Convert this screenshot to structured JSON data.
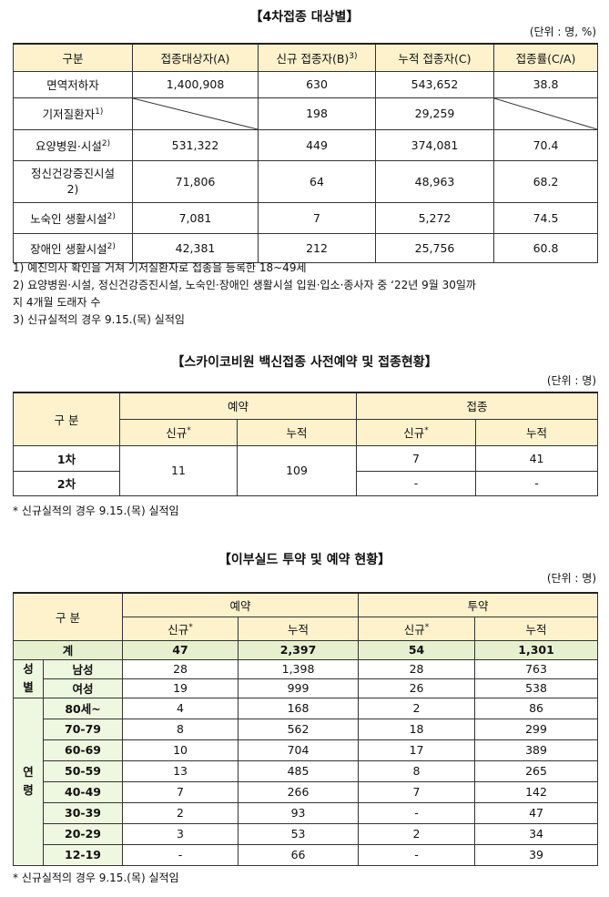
{
  "t1": {
    "title": "【4차접종 대상별】",
    "unit": "(단위 : 명, %)",
    "headers": [
      "구분",
      "접종대상자(A)",
      "신규 접종자(B)",
      "3)",
      "누적 접종자(C)",
      "접종률(C/A)"
    ],
    "rows": [
      {
        "label": "면역저하자",
        "sup": "",
        "a": "1,400,908",
        "b": "630",
        "c": "543,652",
        "r": "38.8"
      },
      {
        "label": "기저질환자",
        "sup": "1)",
        "a": "",
        "b": "198",
        "c": "29,259",
        "r": ""
      },
      {
        "label": "요양병원·시설",
        "sup": "2)",
        "a": "531,322",
        "b": "449",
        "c": "374,081",
        "r": "70.4"
      },
      {
        "label": "정신건강증진시설",
        "label2": "2)",
        "sup": "",
        "a": "71,806",
        "b": "64",
        "c": "48,963",
        "r": "68.2"
      },
      {
        "label": "노숙인 생활시설",
        "sup": "2)",
        "a": "7,081",
        "b": "7",
        "c": "5,272",
        "r": "74.5"
      },
      {
        "label": "장애인 생활시설",
        "sup": "2)",
        "a": "42,381",
        "b": "212",
        "c": "25,756",
        "r": "60.8"
      }
    ],
    "notes": [
      "1) 예진의사 확인을 거쳐 기저질환자로 접종을 등록한 18~49세",
      "2) 요양병원·시설, 정신건강증진시설, 노숙인·장애인 생활시설 입원·입소·종사자 중 ‘22년 9월 30일까",
      "지 4개월 도래자 수",
      "3) 신규실적의 경우 9.15.(목) 실적임"
    ]
  },
  "t2": {
    "title": "【스카이코비원 백신접종 사전예약 및 접종현황】",
    "unit": "(단위 : 명)",
    "h_group": "구 분",
    "h_reserve": "예약",
    "h_vacc": "접종",
    "h_new": "신규",
    "h_new_sup": "*",
    "h_cum": "누적",
    "rows": [
      {
        "label": "1차",
        "v_new": "7",
        "v_cum": "41"
      },
      {
        "label": "2차",
        "v_new": "-",
        "v_cum": "-"
      }
    ],
    "res_new": "11",
    "res_cum": "109",
    "note": "* 신규실적의 경우 9.15.(목) 실적임"
  },
  "t3": {
    "title": "【이부실드 투약 및 예약 현황】",
    "unit": "(단위 : 명)",
    "h_group": "구 분",
    "h_reserve": "예약",
    "h_admin": "투약",
    "h_new": "신규",
    "h_new_sup": "*",
    "h_cum": "누적",
    "total": {
      "label": "계",
      "rn": "47",
      "rc": "2,397",
      "an": "54",
      "ac": "1,301"
    },
    "sex_label": [
      "성",
      "별"
    ],
    "sex": [
      {
        "label": "남성",
        "rn": "28",
        "rc": "1,398",
        "an": "28",
        "ac": "763"
      },
      {
        "label": "여성",
        "rn": "19",
        "rc": "999",
        "an": "26",
        "ac": "538"
      }
    ],
    "age_label": [
      "연",
      "령"
    ],
    "age": [
      {
        "label": "80세~",
        "rn": "4",
        "rc": "168",
        "an": "2",
        "ac": "86"
      },
      {
        "label": "70-79",
        "rn": "8",
        "rc": "562",
        "an": "18",
        "ac": "299"
      },
      {
        "label": "60-69",
        "rn": "10",
        "rc": "704",
        "an": "17",
        "ac": "389"
      },
      {
        "label": "50-59",
        "rn": "13",
        "rc": "485",
        "an": "8",
        "ac": "265"
      },
      {
        "label": "40-49",
        "rn": "7",
        "rc": "266",
        "an": "7",
        "ac": "142"
      },
      {
        "label": "30-39",
        "rn": "2",
        "rc": "93",
        "an": "-",
        "ac": "47"
      },
      {
        "label": "20-29",
        "rn": "3",
        "rc": "53",
        "an": "2",
        "ac": "34"
      },
      {
        "label": "12-19",
        "rn": "-",
        "rc": "66",
        "an": "-",
        "ac": "39"
      }
    ],
    "note": "* 신규실적의 경우 9.15.(목) 실적임"
  }
}
